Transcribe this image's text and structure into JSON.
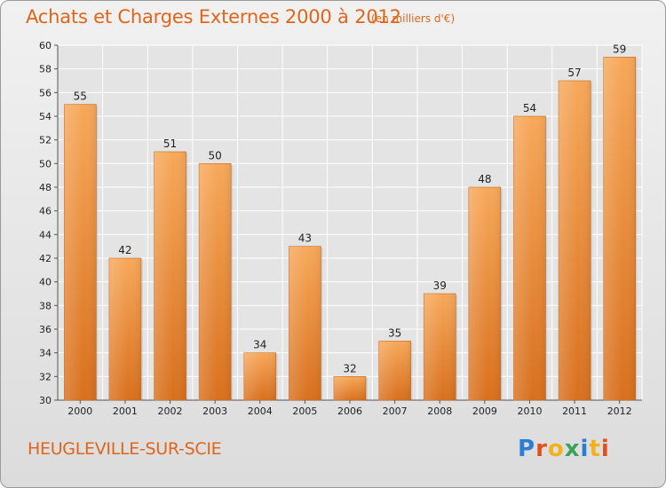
{
  "header": {
    "title": "Achats et Charges Externes 2000 à 2012",
    "subtitle": "(en milliers d'€)"
  },
  "footer": {
    "place": "HEUGLEVILLE-SUR-SCIE",
    "logo_text": "Proxiti"
  },
  "colors": {
    "title": "#e0651a",
    "bar_top": "#f7a85a",
    "bar_bottom": "#d8701e"
  },
  "chart_data": {
    "type": "bar",
    "categories": [
      "2000",
      "2001",
      "2002",
      "2003",
      "2004",
      "2005",
      "2006",
      "2007",
      "2008",
      "2009",
      "2010",
      "2011",
      "2012"
    ],
    "values": [
      55,
      42,
      51,
      50,
      34,
      43,
      32,
      35,
      39,
      48,
      54,
      57,
      59
    ],
    "ylim": [
      30,
      60
    ],
    "yticks": [
      30,
      32,
      34,
      36,
      38,
      40,
      42,
      44,
      46,
      48,
      50,
      52,
      54,
      56,
      58,
      60
    ],
    "grid": true
  }
}
